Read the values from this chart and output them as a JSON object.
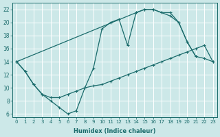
{
  "bg_color": "#cce8e8",
  "line_color": "#1a6b6b",
  "grid_color": "#ffffff",
  "xlabel": "Humidex (Indice chaleur)",
  "xlim": [
    -0.5,
    23.5
  ],
  "ylim": [
    5.5,
    23.0
  ],
  "xticks": [
    0,
    1,
    2,
    3,
    4,
    5,
    6,
    7,
    8,
    9,
    10,
    11,
    12,
    13,
    14,
    15,
    16,
    17,
    18,
    19,
    20,
    21,
    22,
    23
  ],
  "yticks": [
    6,
    8,
    10,
    12,
    14,
    16,
    18,
    20,
    22
  ],
  "line1_x": [
    0,
    1,
    2,
    3,
    4,
    5,
    6,
    7,
    8,
    9,
    10,
    11,
    12,
    13,
    14,
    15,
    16,
    17,
    18,
    19,
    20,
    21
  ],
  "line1_y": [
    14,
    12.5,
    10.5,
    9.0,
    8.0,
    7.0,
    6.0,
    6.5,
    10.0,
    13.0,
    19.0,
    20.0,
    20.5,
    16.5,
    21.5,
    22.0,
    22.0,
    21.5,
    21.5,
    20.0,
    17.0,
    14.8
  ],
  "line2_x": [
    0,
    1,
    2,
    3,
    4,
    5,
    6,
    7,
    8,
    9,
    10,
    11,
    12,
    13,
    14,
    15,
    16,
    17,
    18,
    19,
    20,
    21,
    22,
    23
  ],
  "line2_y": [
    14,
    12.5,
    10.5,
    9.0,
    8.5,
    8.5,
    9.0,
    9.5,
    10.0,
    10.3,
    10.5,
    11.0,
    11.5,
    12.0,
    12.5,
    13.0,
    13.5,
    14.0,
    14.5,
    15.0,
    15.5,
    16.0,
    16.5,
    14.0
  ],
  "line3_x": [
    0,
    14,
    15,
    16,
    17,
    18,
    19,
    20,
    21,
    22,
    23
  ],
  "line3_y": [
    14,
    21.5,
    22.0,
    22.0,
    21.5,
    21.0,
    20.0,
    17.0,
    14.8,
    14.5,
    14.0
  ]
}
